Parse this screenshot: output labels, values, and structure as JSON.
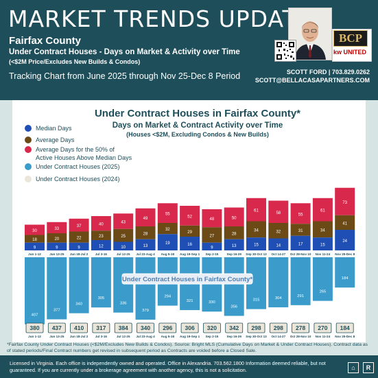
{
  "header": {
    "title": "MARKET TRENDS UPDATE",
    "county": "Fairfax County",
    "subtitle": "Under Contract Houses - Days on Market & Activity over Time",
    "subtitle2": "(<$2M Price/Excludes New Builds & Condos)",
    "period": "Tracking Chart from June 2025 through Nov 25-Dec 8 Period",
    "contact_name": "SCOTT FORD | 703.829.0262",
    "contact_email": "SCOTT@BELLACASAPARTNERS.COM",
    "logo_text": "BCP",
    "kw_text": "kw UNITED"
  },
  "footnote": "*Fairfax County Under Contract Houses (<$2M/Excludes New Builds & Condos). Source: Bright MLS (Cumulative Days on Market & Under Contract Houses). Contract data as of stated periods/Final Contract numbers get revised in subsequent period as Contracts are voided before a Closed Sale.",
  "license": "Licensed in Virginia. Each office is independently owned and operated. Office in Alexandria. 703.562.1800  Information deemed reliable, but not guaranteed. If you are currently under a brokerage agreement with another agency, this is not a solicitation.",
  "chart_data": {
    "type": "bar",
    "title": "Under Contract Houses in Fairfax County*",
    "subtitle": "Days on Market & Contract Activity over Time",
    "subtitle2": "(Houses <$2M, Excluding Condos & New Builds)",
    "inner_label": "Under Contract Houses in Fairfax County*",
    "colors": {
      "median": "#1f4fb4",
      "average": "#6b4a16",
      "active": "#d8294d",
      "contracts_2025": "#3b9ccb",
      "contracts_2024": "#ece6da"
    },
    "legend": [
      {
        "label": "Median Days",
        "color": "#1f4fb4"
      },
      {
        "label": "Average Days",
        "color": "#6b4a16"
      },
      {
        "label": "Average Days for the 50% of Active Houses Above Median Days",
        "color": "#d8294d"
      },
      {
        "label": "Under Contract Houses (2025)",
        "color": "#3b9ccb"
      },
      {
        "label": "Under Contract Houses (2024)",
        "color": "#ece6da"
      }
    ],
    "categories": [
      "Jun 1-12",
      "Jun 13-25",
      "Jun 18-Jul 2",
      "Jul 3-16",
      "Jul 12-25",
      "Jul 23-Aug 4",
      "Aug 5-18",
      "Aug 19-Sep 1",
      "Sep 2-15",
      "Sep 16-29",
      "Sep 30-Oct 13",
      "Oct 14-27",
      "Oct 28-Nov 10",
      "Nov 11-24",
      "Nov 25-Dec 8"
    ],
    "series": [
      {
        "name": "Median Days",
        "values": [
          9,
          9,
          9,
          12,
          10,
          13,
          19,
          16,
          9,
          13,
          15,
          14,
          17,
          15,
          24
        ]
      },
      {
        "name": "Average Days",
        "values": [
          18,
          20,
          22,
          23,
          25,
          28,
          32,
          29,
          27,
          28,
          34,
          32,
          31,
          34,
          41
        ]
      },
      {
        "name": "Average Days for the 50% of Active Houses Above Median Days",
        "values": [
          30,
          33,
          37,
          40,
          43,
          49,
          55,
          52,
          48,
          50,
          61,
          58,
          55,
          61,
          73
        ]
      },
      {
        "name": "Under Contract Houses (2025)",
        "values": [
          380,
          437,
          410,
          317,
          384,
          340,
          296,
          306,
          320,
          342,
          298,
          298,
          278,
          270,
          184
        ]
      },
      {
        "name": "Under Contract Houses (2024)",
        "values": [
          407,
          377,
          340,
          305,
          336,
          379,
          294,
          321,
          330,
          356,
          315,
          304,
          291,
          265,
          184
        ]
      }
    ],
    "days_axis_max": 80,
    "contracts_axis_max": 450
  }
}
